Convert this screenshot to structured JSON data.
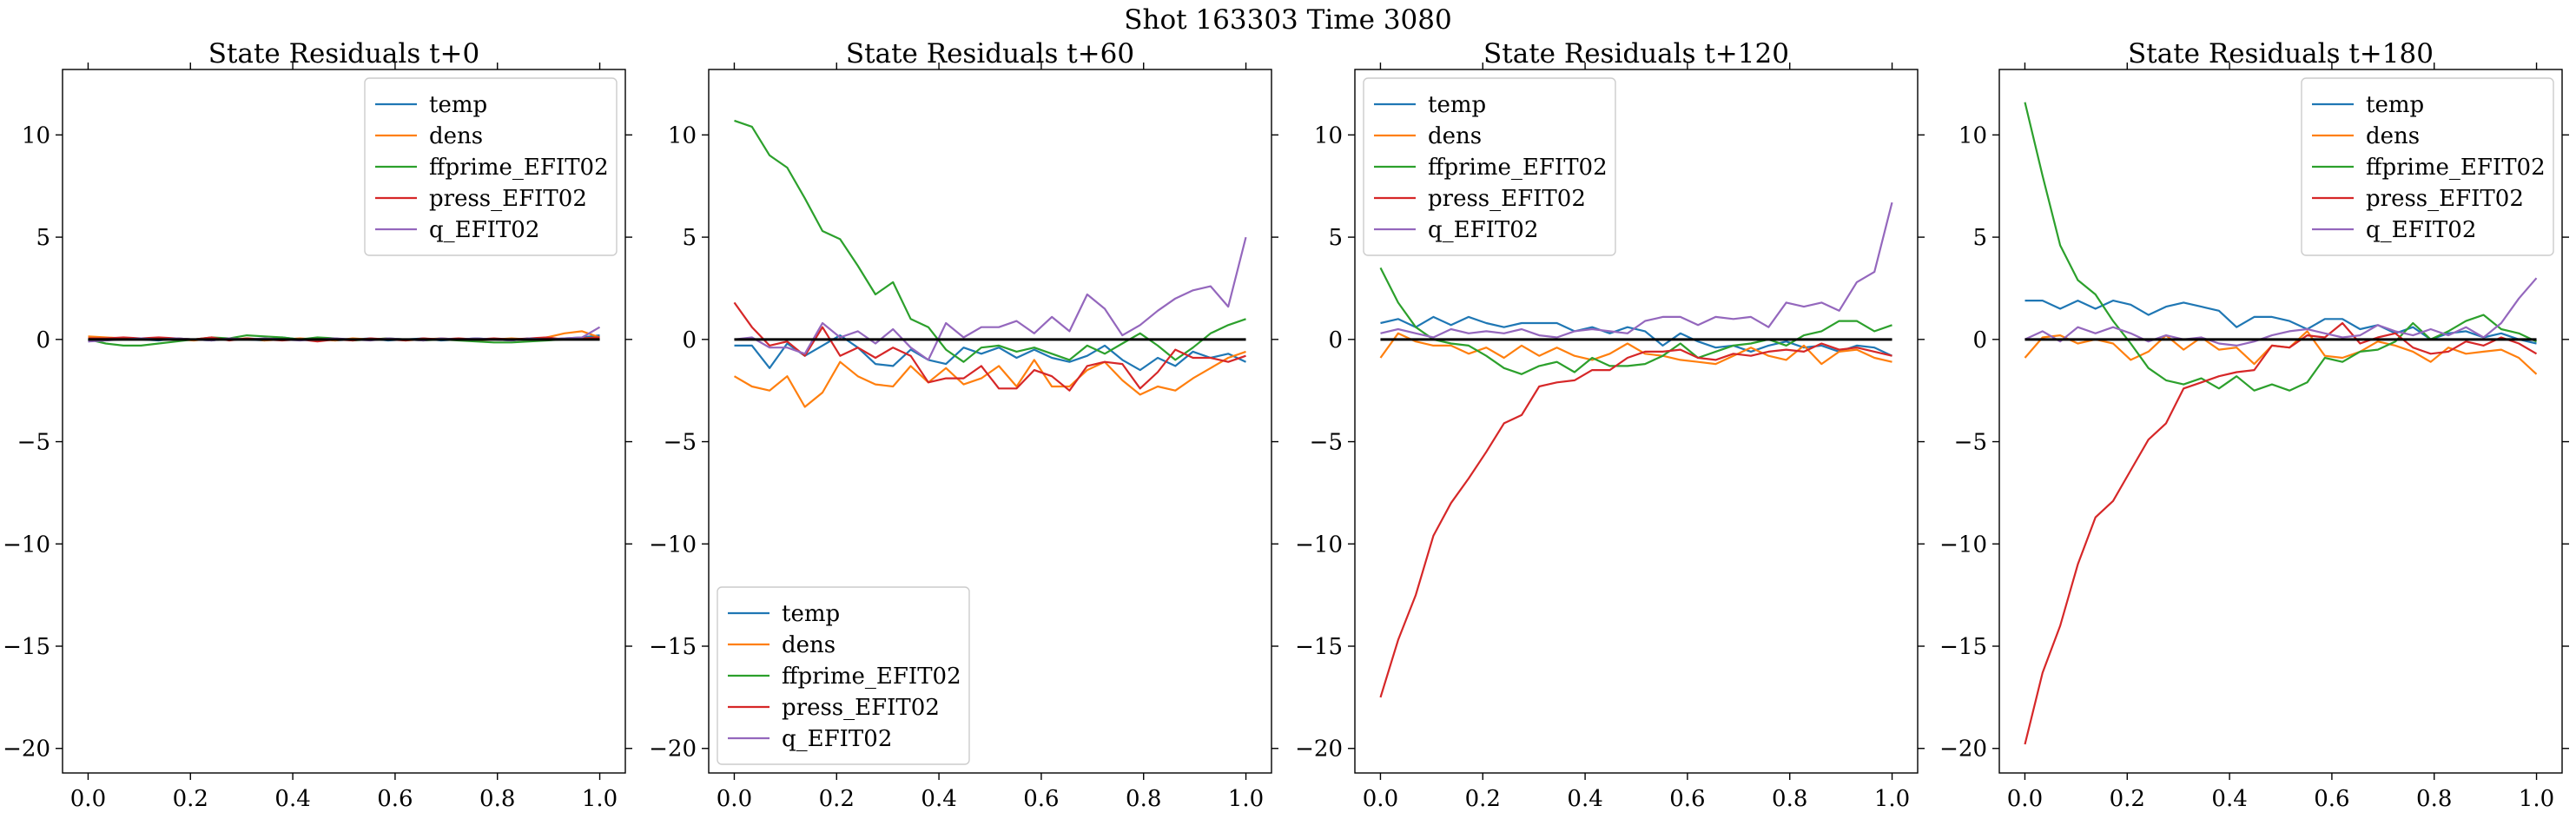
{
  "suptitle": "Shot 163303   Time 3080",
  "chart_data": [
    {
      "type": "line",
      "title": "State Residuals t+0",
      "xlim": [
        -0.05,
        1.05
      ],
      "ylim": [
        -21.2,
        13.2
      ],
      "xticks": [
        0.0,
        0.2,
        0.4,
        0.6,
        0.8,
        1.0
      ],
      "xtick_labels": [
        "0.0",
        "0.2",
        "0.4",
        "0.6",
        "0.8",
        "1.0"
      ],
      "yticks": [
        10,
        5,
        0,
        -5,
        -10,
        -15,
        -20
      ],
      "ytick_labels": [
        "10",
        "5",
        "0",
        "−5",
        "−10",
        "−15",
        "−20"
      ],
      "legend_position": "upper-right",
      "x": [
        0.0,
        0.0345,
        0.069,
        0.1034,
        0.1379,
        0.1724,
        0.2069,
        0.2414,
        0.2759,
        0.3103,
        0.3448,
        0.3793,
        0.4138,
        0.4483,
        0.4828,
        0.5172,
        0.5517,
        0.5862,
        0.6207,
        0.6552,
        0.6897,
        0.7241,
        0.7586,
        0.7931,
        0.8276,
        0.8621,
        0.8966,
        0.931,
        0.9655,
        1.0
      ],
      "series": [
        {
          "name": "temp",
          "color": "#1f77b4",
          "values": [
            -0.1,
            0.0,
            0.05,
            0.0,
            -0.05,
            0.05,
            0.0,
            -0.05,
            0.05,
            0.0,
            -0.05,
            0.1,
            0.0,
            0.05,
            -0.05,
            0.0,
            0.05,
            -0.05,
            0.0,
            0.05,
            -0.05,
            0.0,
            0.05,
            0.0,
            -0.05,
            0.05,
            0.0,
            0.05,
            0.1,
            0.2
          ]
        },
        {
          "name": "dens",
          "color": "#ff7f0e",
          "values": [
            0.15,
            0.1,
            0.05,
            0.0,
            0.05,
            0.0,
            -0.05,
            0.05,
            0.0,
            0.05,
            -0.05,
            0.0,
            0.05,
            0.0,
            -0.05,
            0.05,
            0.0,
            0.05,
            -0.05,
            0.0,
            0.05,
            0.0,
            -0.05,
            0.0,
            0.05,
            0.0,
            0.1,
            0.3,
            0.4,
            0.1
          ]
        },
        {
          "name": "ffprime_EFIT02",
          "color": "#2ca02c",
          "values": [
            0.0,
            -0.2,
            -0.3,
            -0.3,
            -0.2,
            -0.1,
            0.0,
            0.1,
            0.05,
            0.2,
            0.15,
            0.1,
            0.0,
            0.1,
            0.05,
            -0.05,
            0.0,
            0.05,
            0.0,
            -0.05,
            0.0,
            -0.05,
            -0.1,
            -0.15,
            -0.15,
            -0.1,
            -0.05,
            0.0,
            0.05,
            0.1
          ]
        },
        {
          "name": "press_EFIT02",
          "color": "#d62728",
          "values": [
            0.05,
            0.05,
            0.1,
            0.05,
            0.1,
            0.05,
            0.0,
            0.1,
            -0.05,
            0.05,
            0.0,
            -0.05,
            0.0,
            -0.1,
            0.0,
            -0.05,
            0.05,
            0.0,
            -0.05,
            0.05,
            0.0,
            0.05,
            0.0,
            0.05,
            0.0,
            0.05,
            0.1,
            0.0,
            0.05,
            0.1
          ]
        },
        {
          "name": "q_EFIT02",
          "color": "#9467bd",
          "values": [
            -0.1,
            -0.05,
            0.0,
            0.05,
            0.0,
            0.05,
            0.0,
            -0.05,
            0.05,
            0.0,
            0.05,
            0.0,
            -0.05,
            0.0,
            0.05,
            0.0,
            -0.05,
            0.05,
            0.0,
            -0.05,
            0.05,
            0.0,
            0.05,
            0.0,
            -0.05,
            0.05,
            0.0,
            0.05,
            0.1,
            0.6
          ]
        }
      ]
    },
    {
      "type": "line",
      "title": "State Residuals t+60",
      "xlim": [
        -0.05,
        1.05
      ],
      "ylim": [
        -21.2,
        13.2
      ],
      "xticks": [
        0.0,
        0.2,
        0.4,
        0.6,
        0.8,
        1.0
      ],
      "xtick_labels": [
        "0.0",
        "0.2",
        "0.4",
        "0.6",
        "0.8",
        "1.0"
      ],
      "yticks": [
        10,
        5,
        0,
        -5,
        -10,
        -15,
        -20
      ],
      "ytick_labels": [
        "10",
        "5",
        "0",
        "−5",
        "−10",
        "−15",
        "−20"
      ],
      "legend_position": "lower-left",
      "x": [
        0.0,
        0.0345,
        0.069,
        0.1034,
        0.1379,
        0.1724,
        0.2069,
        0.2414,
        0.2759,
        0.3103,
        0.3448,
        0.3793,
        0.4138,
        0.4483,
        0.4828,
        0.5172,
        0.5517,
        0.5862,
        0.6207,
        0.6552,
        0.6897,
        0.7241,
        0.7586,
        0.7931,
        0.8276,
        0.8621,
        0.8966,
        0.931,
        0.9655,
        1.0
      ],
      "series": [
        {
          "name": "temp",
          "color": "#1f77b4",
          "values": [
            -0.3,
            -0.3,
            -1.4,
            -0.2,
            -0.8,
            -0.3,
            0.2,
            -0.4,
            -1.2,
            -1.3,
            -0.5,
            -1.0,
            -1.2,
            -0.4,
            -0.7,
            -0.4,
            -0.9,
            -0.5,
            -0.9,
            -1.1,
            -0.8,
            -0.3,
            -1.0,
            -1.5,
            -0.9,
            -1.3,
            -0.6,
            -0.9,
            -0.7,
            -1.1
          ]
        },
        {
          "name": "dens",
          "color": "#ff7f0e",
          "values": [
            -1.8,
            -2.3,
            -2.5,
            -1.8,
            -3.3,
            -2.6,
            -1.1,
            -1.8,
            -2.2,
            -2.3,
            -1.3,
            -2.1,
            -1.4,
            -2.2,
            -1.9,
            -1.3,
            -2.3,
            -1.0,
            -2.3,
            -2.3,
            -1.5,
            -1.1,
            -2.0,
            -2.7,
            -2.3,
            -2.5,
            -1.9,
            -1.4,
            -0.9,
            -0.6
          ]
        },
        {
          "name": "ffprime_EFIT02",
          "color": "#2ca02c",
          "values": [
            10.7,
            10.4,
            9.0,
            8.4,
            6.9,
            5.3,
            4.9,
            3.6,
            2.2,
            2.8,
            1.0,
            0.6,
            -0.5,
            -1.1,
            -0.4,
            -0.3,
            -0.6,
            -0.4,
            -0.7,
            -1.0,
            -0.3,
            -0.7,
            -0.2,
            0.3,
            -0.3,
            -1.0,
            -0.4,
            0.3,
            0.7,
            1.0
          ]
        },
        {
          "name": "press_EFIT02",
          "color": "#d62728",
          "values": [
            1.8,
            0.6,
            -0.3,
            -0.1,
            -0.8,
            0.6,
            -0.8,
            -0.4,
            -0.9,
            -0.4,
            -0.8,
            -2.1,
            -1.9,
            -1.9,
            -1.3,
            -2.4,
            -2.4,
            -1.5,
            -1.8,
            -2.5,
            -1.3,
            -1.1,
            -1.2,
            -2.4,
            -1.6,
            -0.5,
            -0.9,
            -0.9,
            -1.1,
            -0.8
          ]
        },
        {
          "name": "q_EFIT02",
          "color": "#9467bd",
          "values": [
            0.0,
            0.1,
            -0.4,
            -0.4,
            -0.7,
            0.8,
            0.1,
            0.4,
            -0.2,
            0.5,
            -0.4,
            -1.0,
            0.8,
            0.1,
            0.6,
            0.6,
            0.9,
            0.3,
            1.1,
            0.4,
            2.2,
            1.5,
            0.2,
            0.7,
            1.4,
            2.0,
            2.4,
            2.6,
            1.6,
            5.0
          ]
        }
      ]
    },
    {
      "type": "line",
      "title": "State Residuals t+120",
      "xlim": [
        -0.05,
        1.05
      ],
      "ylim": [
        -21.2,
        13.2
      ],
      "xticks": [
        0.0,
        0.2,
        0.4,
        0.6,
        0.8,
        1.0
      ],
      "xtick_labels": [
        "0.0",
        "0.2",
        "0.4",
        "0.6",
        "0.8",
        "1.0"
      ],
      "yticks": [
        10,
        5,
        0,
        -5,
        -10,
        -15,
        -20
      ],
      "ytick_labels": [
        "10",
        "5",
        "0",
        "−5",
        "−10",
        "−15",
        "−20"
      ],
      "legend_position": "upper-left",
      "x": [
        0.0,
        0.0345,
        0.069,
        0.1034,
        0.1379,
        0.1724,
        0.2069,
        0.2414,
        0.2759,
        0.3103,
        0.3448,
        0.3793,
        0.4138,
        0.4483,
        0.4828,
        0.5172,
        0.5517,
        0.5862,
        0.6207,
        0.6552,
        0.6897,
        0.7241,
        0.7586,
        0.7931,
        0.8276,
        0.8621,
        0.8966,
        0.931,
        0.9655,
        1.0
      ],
      "series": [
        {
          "name": "temp",
          "color": "#1f77b4",
          "values": [
            0.8,
            1.0,
            0.6,
            1.1,
            0.7,
            1.1,
            0.8,
            0.6,
            0.8,
            0.8,
            0.8,
            0.4,
            0.6,
            0.3,
            0.6,
            0.4,
            -0.3,
            0.3,
            -0.1,
            -0.4,
            -0.3,
            -0.6,
            -0.3,
            -0.1,
            -0.4,
            -0.3,
            -0.6,
            -0.3,
            -0.4,
            -0.8
          ]
        },
        {
          "name": "dens",
          "color": "#ff7f0e",
          "values": [
            -0.9,
            0.3,
            -0.1,
            -0.3,
            -0.3,
            -0.7,
            -0.4,
            -0.9,
            -0.3,
            -0.8,
            -0.4,
            -0.8,
            -1.0,
            -0.7,
            -0.2,
            -0.7,
            -0.8,
            -1.0,
            -1.1,
            -1.2,
            -0.8,
            -0.4,
            -0.8,
            -1.0,
            -0.3,
            -1.2,
            -0.6,
            -0.5,
            -0.9,
            -1.1
          ]
        },
        {
          "name": "ffprime_EFIT02",
          "color": "#2ca02c",
          "values": [
            3.5,
            1.8,
            0.6,
            0.0,
            -0.2,
            -0.3,
            -0.8,
            -1.4,
            -1.7,
            -1.3,
            -1.1,
            -1.6,
            -0.9,
            -1.3,
            -1.3,
            -1.2,
            -0.8,
            -0.2,
            -0.9,
            -0.6,
            -0.3,
            -0.2,
            0.0,
            -0.3,
            0.2,
            0.4,
            0.9,
            0.9,
            0.4,
            0.7
          ]
        },
        {
          "name": "press_EFIT02",
          "color": "#d62728",
          "values": [
            -17.5,
            -14.7,
            -12.5,
            -9.6,
            -8.0,
            -6.8,
            -5.5,
            -4.1,
            -3.7,
            -2.3,
            -2.1,
            -2.0,
            -1.5,
            -1.5,
            -0.9,
            -0.6,
            -0.6,
            -0.5,
            -0.9,
            -1.0,
            -0.7,
            -0.8,
            -0.6,
            -0.5,
            -0.6,
            -0.2,
            -0.5,
            -0.4,
            -0.6,
            -0.8
          ]
        },
        {
          "name": "q_EFIT02",
          "color": "#9467bd",
          "values": [
            0.3,
            0.5,
            0.3,
            0.1,
            0.5,
            0.3,
            0.4,
            0.3,
            0.5,
            0.2,
            0.1,
            0.4,
            0.5,
            0.4,
            0.3,
            0.9,
            1.1,
            1.1,
            0.7,
            1.1,
            1.0,
            1.1,
            0.6,
            1.8,
            1.6,
            1.8,
            1.4,
            2.8,
            3.3,
            6.7
          ]
        }
      ]
    },
    {
      "type": "line",
      "title": "State Residuals t+180",
      "xlim": [
        -0.05,
        1.05
      ],
      "ylim": [
        -21.2,
        13.2
      ],
      "xticks": [
        0.0,
        0.2,
        0.4,
        0.6,
        0.8,
        1.0
      ],
      "xtick_labels": [
        "0.0",
        "0.2",
        "0.4",
        "0.6",
        "0.8",
        "1.0"
      ],
      "yticks": [
        10,
        5,
        0,
        -5,
        -10,
        -15,
        -20
      ],
      "ytick_labels": [
        "10",
        "5",
        "0",
        "−5",
        "−10",
        "−15",
        "−20"
      ],
      "legend_position": "upper-right",
      "x": [
        0.0,
        0.0345,
        0.069,
        0.1034,
        0.1379,
        0.1724,
        0.2069,
        0.2414,
        0.2759,
        0.3103,
        0.3448,
        0.3793,
        0.4138,
        0.4483,
        0.4828,
        0.5172,
        0.5517,
        0.5862,
        0.6207,
        0.6552,
        0.6897,
        0.7241,
        0.7586,
        0.7931,
        0.8276,
        0.8621,
        0.8966,
        0.931,
        0.9655,
        1.0
      ],
      "series": [
        {
          "name": "temp",
          "color": "#1f77b4",
          "values": [
            1.9,
            1.9,
            1.5,
            1.9,
            1.5,
            1.9,
            1.7,
            1.2,
            1.6,
            1.8,
            1.6,
            1.4,
            0.6,
            1.1,
            1.1,
            0.9,
            0.5,
            1.0,
            1.0,
            0.5,
            0.7,
            0.3,
            0.6,
            0.0,
            0.3,
            0.4,
            0.1,
            0.3,
            0.0,
            -0.2
          ]
        },
        {
          "name": "dens",
          "color": "#ff7f0e",
          "values": [
            -0.9,
            0.1,
            0.2,
            -0.2,
            0.0,
            -0.2,
            -1.0,
            -0.6,
            0.2,
            -0.5,
            0.1,
            -0.5,
            -0.4,
            -1.2,
            -0.3,
            -0.4,
            0.4,
            -0.8,
            -0.9,
            -0.6,
            -0.1,
            -0.3,
            -0.6,
            -1.1,
            -0.4,
            -0.7,
            -0.6,
            -0.5,
            -0.9,
            -1.7
          ]
        },
        {
          "name": "ffprime_EFIT02",
          "color": "#2ca02c",
          "values": [
            11.6,
            8.0,
            4.6,
            2.9,
            2.2,
            0.9,
            -0.2,
            -1.4,
            -2.0,
            -2.2,
            -1.9,
            -2.4,
            -1.8,
            -2.5,
            -2.2,
            -2.5,
            -2.1,
            -0.9,
            -1.1,
            -0.6,
            -0.5,
            -0.1,
            0.8,
            0.0,
            0.4,
            0.9,
            1.2,
            0.5,
            0.3,
            -0.1
          ]
        },
        {
          "name": "press_EFIT02",
          "color": "#d62728",
          "values": [
            -19.8,
            -16.3,
            -14.0,
            -11.0,
            -8.7,
            -7.9,
            -6.4,
            -4.9,
            -4.1,
            -2.4,
            -2.1,
            -1.8,
            -1.6,
            -1.5,
            -0.3,
            -0.4,
            0.2,
            0.1,
            0.8,
            -0.2,
            0.1,
            0.3,
            -0.4,
            -0.7,
            -0.6,
            -0.1,
            -0.3,
            0.1,
            -0.2,
            -0.7
          ]
        },
        {
          "name": "q_EFIT02",
          "color": "#9467bd",
          "values": [
            0.0,
            0.4,
            -0.1,
            0.6,
            0.3,
            0.6,
            0.3,
            -0.1,
            0.2,
            0.0,
            0.1,
            -0.2,
            -0.3,
            -0.1,
            0.2,
            0.4,
            0.5,
            0.3,
            0.1,
            0.2,
            0.7,
            0.4,
            0.2,
            0.5,
            0.2,
            0.6,
            0.1,
            0.8,
            2.0,
            3.0
          ]
        }
      ]
    }
  ]
}
